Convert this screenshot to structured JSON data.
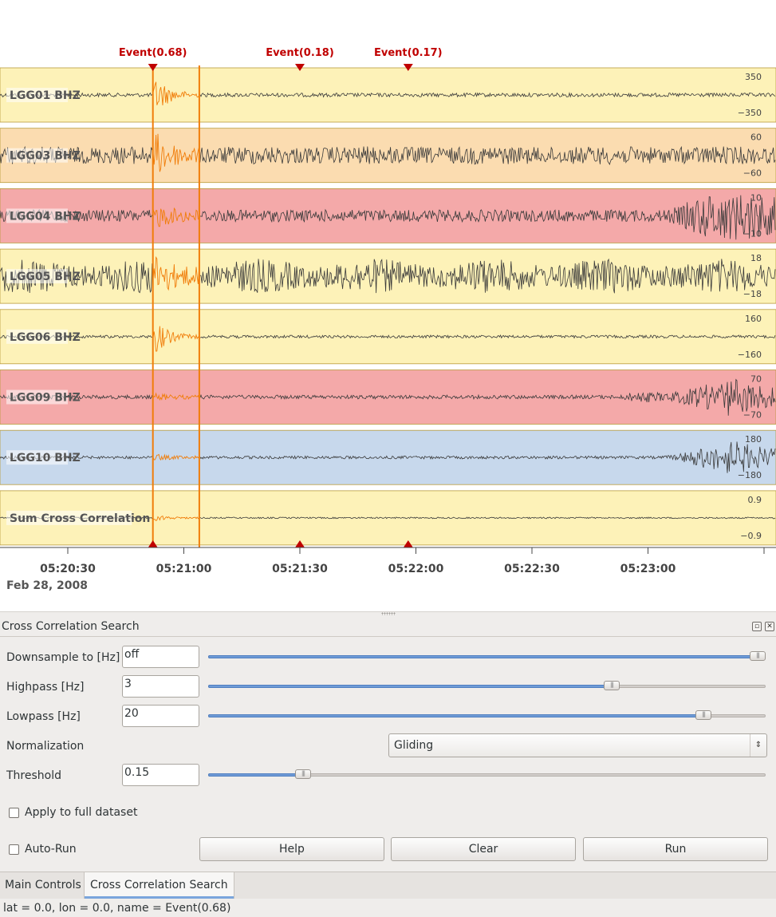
{
  "plot": {
    "markers": [
      {
        "label": "Event(0.68)",
        "time": "05:20:52",
        "selected": true
      },
      {
        "label": "Event(0.18)",
        "time": "05:21:30",
        "selected": false
      },
      {
        "label": "Event(0.17)",
        "time": "05:21:58",
        "selected": false
      }
    ],
    "selection": {
      "start": "05:20:52",
      "end": "05:21:04"
    },
    "traces": [
      {
        "name": "LGG01  BHZ",
        "ymax": "350",
        "ymin": "−350",
        "bg": "#fdf2b8",
        "amp": 0.08,
        "pulse": 1.0,
        "late": 0.0,
        "lateSrc": 0.0
      },
      {
        "name": "LGG03  BHZ",
        "ymax": "60",
        "ymin": "−60",
        "bg": "#fbdcb0",
        "amp": 0.33,
        "pulse": 0.9,
        "late": 0.05,
        "lateSrc": 0.0
      },
      {
        "name": "LGG04  BHZ",
        "ymax": "10",
        "ymin": "−10",
        "bg": "#f4a9a9",
        "amp": 0.25,
        "pulse": 0.45,
        "late": 0.75,
        "lateSrc": 0.85
      },
      {
        "name": "LGG05  BHZ",
        "ymax": "18",
        "ymin": "−18",
        "bg": "#fdf2b8",
        "amp": 0.38,
        "pulse": 0.85,
        "late": 0.35,
        "lateSrc": 0.0
      },
      {
        "name": "LGG06  BHZ",
        "ymax": "160",
        "ymin": "−160",
        "bg": "#fdf2b8",
        "amp": 0.06,
        "pulse": 0.9,
        "late": 0.0,
        "lateSrc": 0.0
      },
      {
        "name": "LGG09  BHZ",
        "ymax": "70",
        "ymin": "−70",
        "bg": "#f4a9a9",
        "amp": 0.08,
        "pulse": 0.12,
        "late": 0.5,
        "lateSrc": 0.8
      },
      {
        "name": "LGG10  BHZ",
        "ymax": "180",
        "ymin": "−180",
        "bg": "#c7d8ec",
        "amp": 0.06,
        "pulse": 0.12,
        "late": 0.45,
        "lateSrc": 0.85
      },
      {
        "name": "Sum Cross Correlation",
        "ymax": "0.9",
        "ymin": "−0.9",
        "bg": "#fdf2b8",
        "amp": 0.03,
        "pulse": 0.15,
        "late": 0.0,
        "lateSrc": 0.0
      }
    ],
    "ticks": [
      "05:20:30",
      "05:21:00",
      "05:21:30",
      "05:22:00",
      "05:22:30",
      "05:23:00"
    ],
    "date": "Feb 28, 2008",
    "colors": {
      "event": "#c00000",
      "highlight": "#f07d0a",
      "wave": "#3a3a3a"
    }
  },
  "panel": {
    "title": "Cross Correlation Search",
    "float_icon": "float-icon",
    "close_icon": "close-icon",
    "downsample": {
      "label": "Downsample to [Hz]",
      "value": "off",
      "fraction": 1.0
    },
    "highpass": {
      "label": "Highpass [Hz]",
      "value": "3",
      "fraction": 0.73
    },
    "lowpass": {
      "label": "Lowpass [Hz]",
      "value": "20",
      "fraction": 0.9
    },
    "normalization": {
      "label": "Normalization",
      "value": "Gliding"
    },
    "threshold": {
      "label": "Threshold",
      "value": "0.15",
      "fraction": 0.16
    },
    "apply_full": {
      "label": "Apply to full dataset",
      "checked": false
    },
    "auto_run": {
      "label": "Auto-Run",
      "checked": false
    },
    "buttons": {
      "help": "Help",
      "clear": "Clear",
      "run": "Run"
    }
  },
  "tabs": [
    {
      "label": "Main Controls",
      "active": false
    },
    {
      "label": "Cross Correlation Search",
      "active": true
    }
  ],
  "status": "lat = 0.0, lon = 0.0, name = Event(0.68)"
}
